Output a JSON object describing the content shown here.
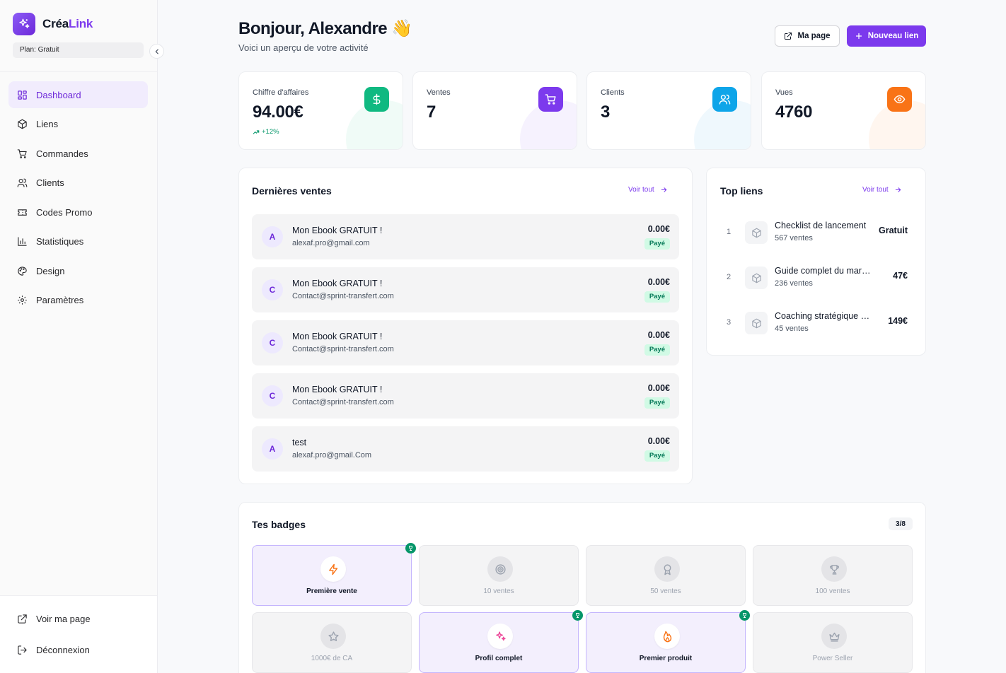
{
  "brand": {
    "name_part1": "Créa",
    "name_part2": "Link",
    "plan": "Plan: Gratuit"
  },
  "sidebar": {
    "items": [
      {
        "label": "Dashboard",
        "icon": "dashboard-icon",
        "active": true
      },
      {
        "label": "Liens",
        "icon": "package-icon"
      },
      {
        "label": "Commandes",
        "icon": "cart-icon"
      },
      {
        "label": "Clients",
        "icon": "users-icon"
      },
      {
        "label": "Codes Promo",
        "icon": "ticket-icon"
      },
      {
        "label": "Statistiques",
        "icon": "bar-chart-icon"
      },
      {
        "label": "Design",
        "icon": "palette-icon"
      },
      {
        "label": "Paramètres",
        "icon": "gear-icon"
      }
    ],
    "bottom": [
      {
        "label": "Voir ma page",
        "icon": "external-link-icon"
      },
      {
        "label": "Déconnexion",
        "icon": "logout-icon"
      }
    ]
  },
  "header": {
    "greeting": "Bonjour, Alexandre 👋",
    "subtitle": "Voici un aperçu de votre activité",
    "my_page_label": "Ma page",
    "new_link_label": "Nouveau lien"
  },
  "stats": [
    {
      "label": "Chiffre d'affaires",
      "value": "94.00€",
      "trend": "+12%",
      "icon": "dollar-icon",
      "color": "#10b981"
    },
    {
      "label": "Ventes",
      "value": "7",
      "icon": "cart-icon",
      "color": "#7c3aed"
    },
    {
      "label": "Clients",
      "value": "3",
      "icon": "users-icon",
      "color": "#0ea5e9"
    },
    {
      "label": "Vues",
      "value": "4760",
      "icon": "eye-icon",
      "color": "#f97316"
    }
  ],
  "sales": {
    "title": "Dernières ventes",
    "see_all": "Voir tout",
    "items": [
      {
        "initial": "A",
        "name": "Mon Ebook GRATUIT !",
        "email": "alexaf.pro@gmail.com",
        "amount": "0.00€",
        "status": "Payé"
      },
      {
        "initial": "C",
        "name": "Mon Ebook GRATUIT !",
        "email": "Contact@sprint-transfert.com",
        "amount": "0.00€",
        "status": "Payé"
      },
      {
        "initial": "C",
        "name": "Mon Ebook GRATUIT !",
        "email": "Contact@sprint-transfert.com",
        "amount": "0.00€",
        "status": "Payé"
      },
      {
        "initial": "C",
        "name": "Mon Ebook GRATUIT !",
        "email": "Contact@sprint-transfert.com",
        "amount": "0.00€",
        "status": "Payé"
      },
      {
        "initial": "A",
        "name": "test",
        "email": "alexaf.pro@gmail.Com",
        "amount": "0.00€",
        "status": "Payé"
      }
    ]
  },
  "top_links": {
    "title": "Top liens",
    "see_all": "Voir tout",
    "items": [
      {
        "rank": "1",
        "title": "Checklist de lancement",
        "sales": "567 ventes",
        "price": "Gratuit"
      },
      {
        "rank": "2",
        "title": "Guide complet du marketing",
        "sales": "236 ventes",
        "price": "47€"
      },
      {
        "rank": "3",
        "title": "Coaching stratégique personnalisé",
        "sales": "45 ventes",
        "price": "149€"
      }
    ]
  },
  "badges": {
    "title": "Tes badges",
    "count": "3/8",
    "items": [
      {
        "label": "Première vente",
        "icon": "lightning-icon",
        "unlocked": true,
        "color": "#f97316"
      },
      {
        "label": "10 ventes",
        "icon": "target-icon",
        "unlocked": false
      },
      {
        "label": "50 ventes",
        "icon": "award-icon",
        "unlocked": false
      },
      {
        "label": "100 ventes",
        "icon": "trophy-icon",
        "unlocked": false
      },
      {
        "label": "1000€ de CA",
        "icon": "star-icon",
        "unlocked": false
      },
      {
        "label": "Profil complet",
        "icon": "sparkles-icon",
        "unlocked": true,
        "color": "#ec4899"
      },
      {
        "label": "Premier produit",
        "icon": "flame-icon",
        "unlocked": true,
        "color": "#f97316"
      },
      {
        "label": "Power Seller",
        "icon": "crown-icon",
        "unlocked": false
      }
    ]
  }
}
